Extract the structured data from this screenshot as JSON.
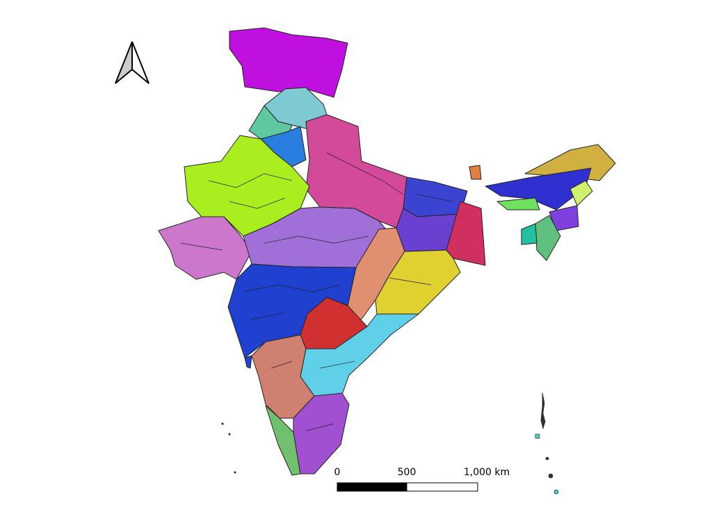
{
  "scale_bar": {
    "labels": [
      "0",
      "500",
      "1,000 km"
    ]
  }
}
